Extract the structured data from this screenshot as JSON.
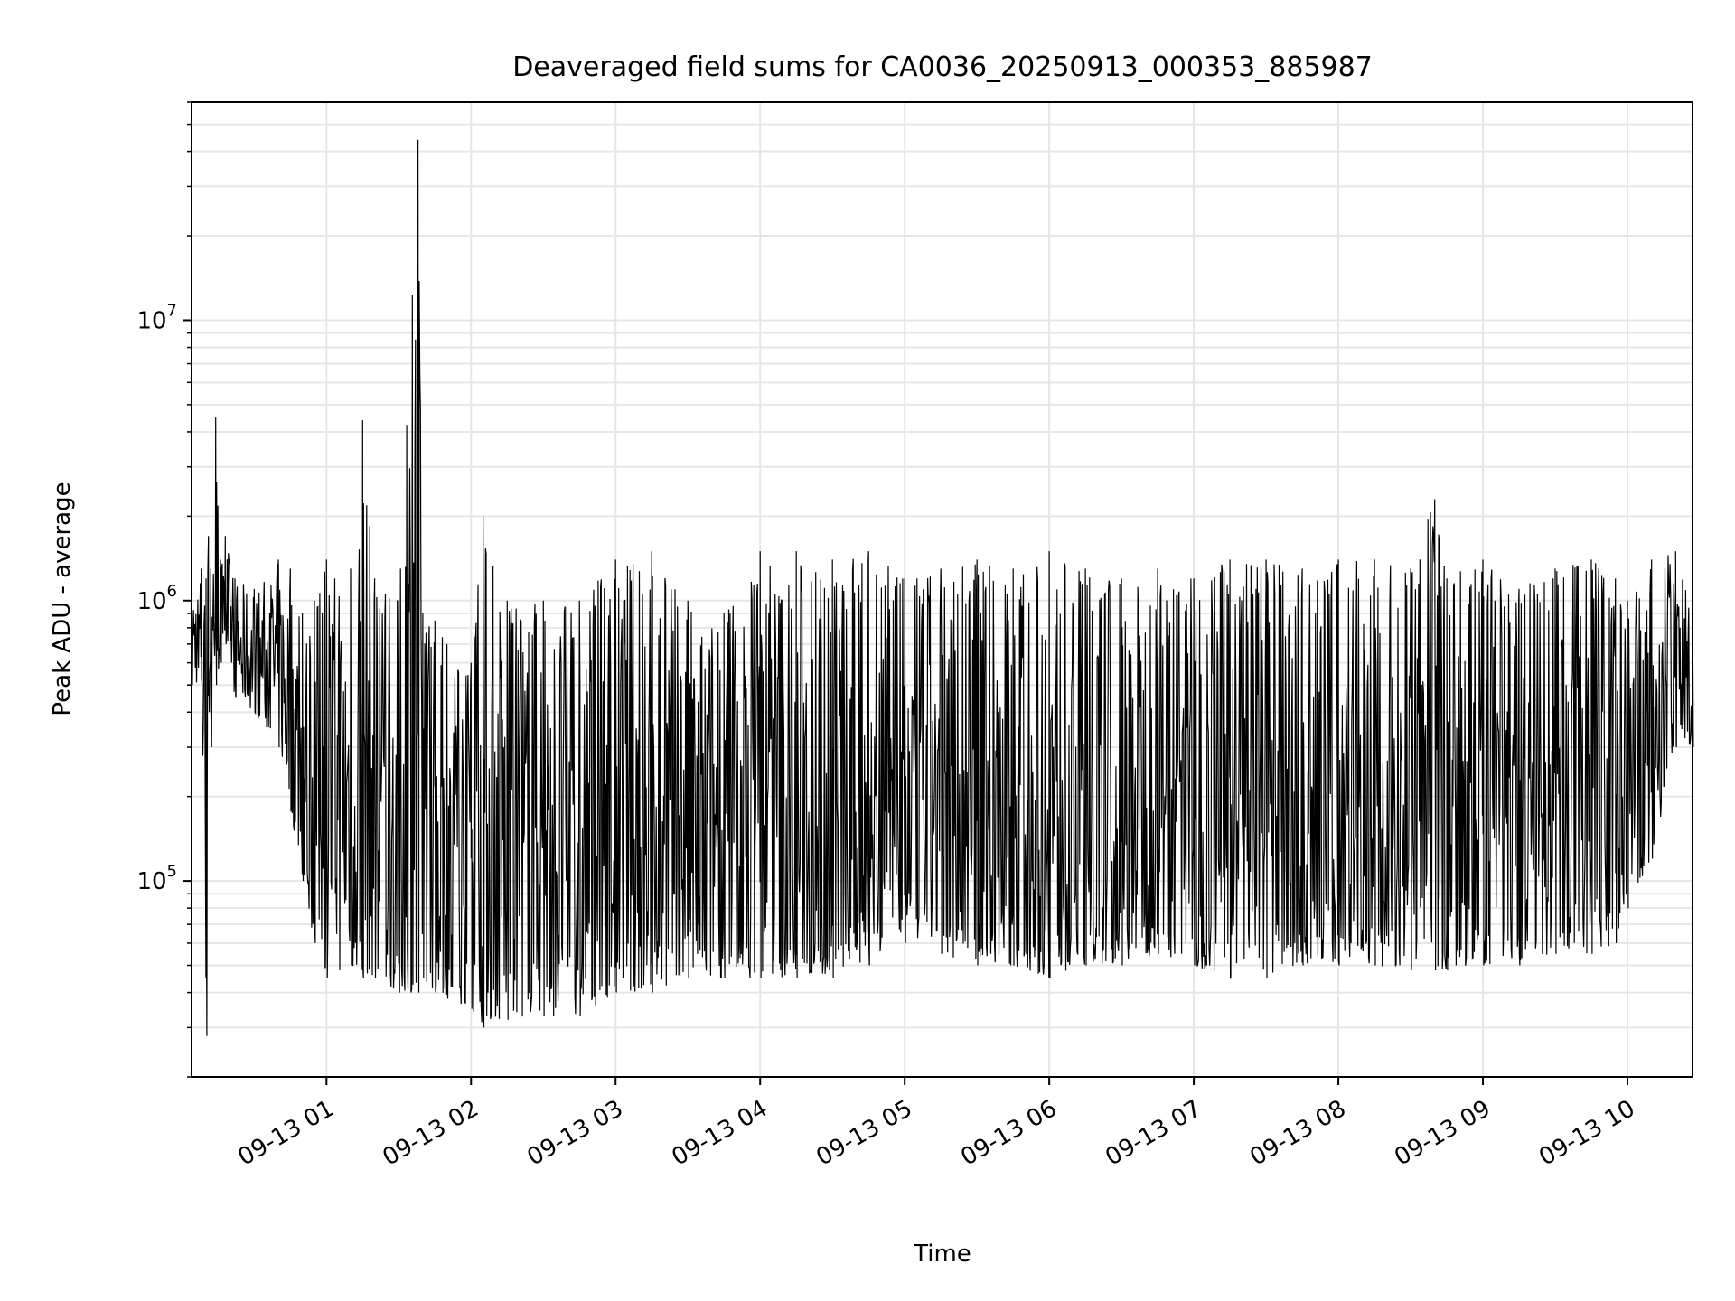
{
  "chart_data": {
    "type": "line",
    "title": "Deaveraged field sums for CA0036_20250913_000353_885987",
    "xlabel": "Time",
    "ylabel": "Peak ADU - average",
    "yscale": "log",
    "ylim": [
      20000,
      60000000
    ],
    "xlim": [
      "2025-09-13T00:04:00",
      "2025-09-13T10:27:00"
    ],
    "grid": true,
    "line_color": "#000000",
    "x_ticks": [
      {
        "label": "09-13 01",
        "t": "2025-09-13T01:00:00"
      },
      {
        "label": "09-13 02",
        "t": "2025-09-13T02:00:00"
      },
      {
        "label": "09-13 03",
        "t": "2025-09-13T03:00:00"
      },
      {
        "label": "09-13 04",
        "t": "2025-09-13T04:00:00"
      },
      {
        "label": "09-13 05",
        "t": "2025-09-13T05:00:00"
      },
      {
        "label": "09-13 06",
        "t": "2025-09-13T06:00:00"
      },
      {
        "label": "09-13 07",
        "t": "2025-09-13T07:00:00"
      },
      {
        "label": "09-13 08",
        "t": "2025-09-13T08:00:00"
      },
      {
        "label": "09-13 09",
        "t": "2025-09-13T09:00:00"
      },
      {
        "label": "09-13 10",
        "t": "2025-09-13T10:00:00"
      }
    ],
    "y_ticks": [
      {
        "base": "10",
        "exp": "5",
        "value": 100000
      },
      {
        "base": "10",
        "exp": "6",
        "value": 1000000
      },
      {
        "base": "10",
        "exp": "7",
        "value": 10000000
      }
    ],
    "series": [
      {
        "x": [
          "2025-09-13T00:04:00",
          "2025-09-13T00:08:00",
          "2025-09-13T00:10:00",
          "2025-09-13T00:11:00",
          "2025-09-13T00:12:00",
          "2025-09-13T00:14:00",
          "2025-09-13T00:16:00",
          "2025-09-13T00:18:00",
          "2025-09-13T00:22:00",
          "2025-09-13T00:30:00",
          "2025-09-13T00:40:00",
          "2025-09-13T00:45:00",
          "2025-09-13T00:50:00",
          "2025-09-13T00:55:00",
          "2025-09-13T01:00:00",
          "2025-09-13T01:10:00",
          "2025-09-13T01:15:00",
          "2025-09-13T01:20:00",
          "2025-09-13T01:30:00",
          "2025-09-13T01:38:00",
          "2025-09-13T01:40:00",
          "2025-09-13T01:45:00",
          "2025-09-13T01:50:00",
          "2025-09-13T02:00:00",
          "2025-09-13T02:05:00",
          "2025-09-13T02:15:00",
          "2025-09-13T02:30:00",
          "2025-09-13T02:45:00",
          "2025-09-13T03:00:00",
          "2025-09-13T03:15:00",
          "2025-09-13T03:30:00",
          "2025-09-13T03:45:00",
          "2025-09-13T04:00:00",
          "2025-09-13T04:15:00",
          "2025-09-13T04:30:00",
          "2025-09-13T04:45:00",
          "2025-09-13T05:00:00",
          "2025-09-13T05:15:00",
          "2025-09-13T05:30:00",
          "2025-09-13T05:45:00",
          "2025-09-13T06:00:00",
          "2025-09-13T06:15:00",
          "2025-09-13T06:30:00",
          "2025-09-13T06:45:00",
          "2025-09-13T07:00:00",
          "2025-09-13T07:15:00",
          "2025-09-13T07:30:00",
          "2025-09-13T07:45:00",
          "2025-09-13T08:00:00",
          "2025-09-13T08:15:00",
          "2025-09-13T08:30:00",
          "2025-09-13T08:40:00",
          "2025-09-13T08:45:00",
          "2025-09-13T09:00:00",
          "2025-09-13T09:15:00",
          "2025-09-13T09:30:00",
          "2025-09-13T09:45:00",
          "2025-09-13T09:55:00",
          "2025-09-13T10:00:00",
          "2025-09-13T10:10:00",
          "2025-09-13T10:20:00",
          "2025-09-13T10:27:00"
        ],
        "upper": [
          1200000,
          1300000,
          1200000,
          1700000,
          1300000,
          4500000,
          1400000,
          1700000,
          1200000,
          1100000,
          1400000,
          1300000,
          900000,
          1000000,
          1400000,
          1300000,
          4400000,
          1200000,
          1000000,
          44000000,
          900000,
          850000,
          700000,
          600000,
          2000000,
          1000000,
          1000000,
          1000000,
          1400000,
          1500000,
          1000000,
          900000,
          1500000,
          1500000,
          1400000,
          1500000,
          1200000,
          1300000,
          1400000,
          1300000,
          1500000,
          1300000,
          1200000,
          1300000,
          1200000,
          1400000,
          1400000,
          1300000,
          1400000,
          1400000,
          1300000,
          2300000,
          1200000,
          1400000,
          1100000,
          1300000,
          1400000,
          1200000,
          1000000,
          1400000,
          1500000,
          1200000
        ],
        "lower": [
          500000,
          500000,
          28000,
          400000,
          300000,
          500000,
          600000,
          700000,
          450000,
          400000,
          300000,
          180000,
          100000,
          60000,
          45000,
          50000,
          45000,
          45000,
          40000,
          40000,
          45000,
          40000,
          38000,
          35000,
          30000,
          32000,
          33000,
          33000,
          40000,
          40000,
          45000,
          45000,
          45000,
          45000,
          45000,
          50000,
          60000,
          55000,
          50000,
          50000,
          45000,
          50000,
          50000,
          55000,
          50000,
          45000,
          45000,
          50000,
          50000,
          50000,
          48000,
          48000,
          48000,
          50000,
          50000,
          55000,
          55000,
          60000,
          80000,
          120000,
          300000,
          300000
        ]
      }
    ]
  }
}
